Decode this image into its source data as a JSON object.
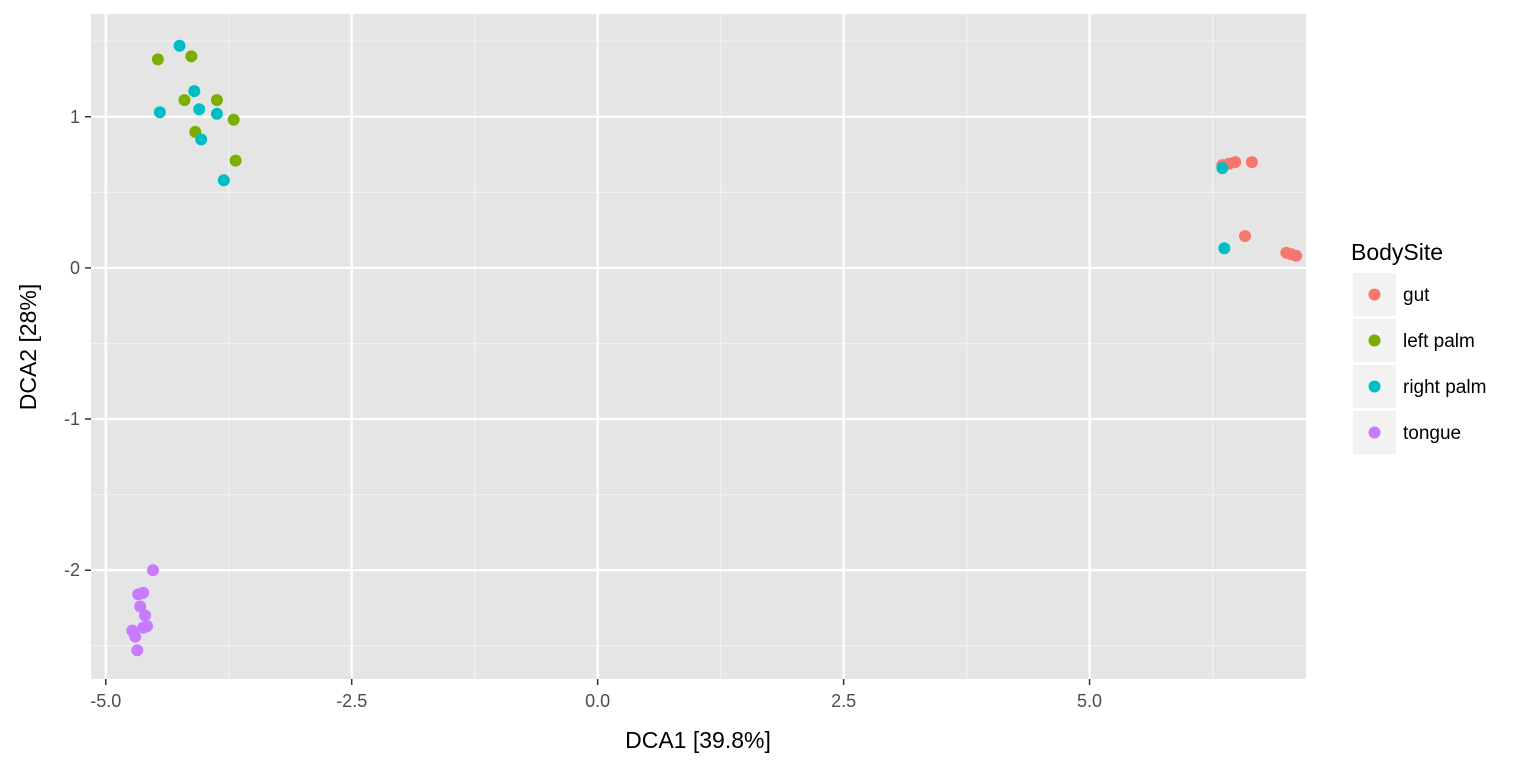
{
  "chart_data": {
    "type": "scatter",
    "xlabel": "DCA1   [39.8%]",
    "ylabel": "DCA2   [28%]",
    "xlim": [
      -5.15,
      7.2
    ],
    "ylim": [
      -2.72,
      1.68
    ],
    "x_ticks": [
      -5.0,
      -2.5,
      0.0,
      2.5,
      5.0
    ],
    "x_tick_labels": [
      "-5.0",
      "-2.5",
      "0.0",
      "2.5",
      "5.0"
    ],
    "y_ticks": [
      -2,
      -1,
      0,
      1
    ],
    "y_tick_labels": [
      "-2",
      "-1",
      "0",
      "1"
    ],
    "grid": true,
    "legend": {
      "title": "BodySite",
      "placement": "right"
    },
    "series": [
      {
        "name": "gut",
        "color": "#F8766D",
        "points": [
          [
            6.35,
            0.68
          ],
          [
            6.42,
            0.69
          ],
          [
            6.48,
            0.7
          ],
          [
            6.65,
            0.7
          ],
          [
            6.58,
            0.21
          ],
          [
            7.0,
            0.1
          ],
          [
            7.05,
            0.09
          ],
          [
            7.1,
            0.08
          ]
        ]
      },
      {
        "name": "left palm",
        "color": "#7CAE00",
        "points": [
          [
            -4.47,
            1.38
          ],
          [
            -4.13,
            1.4
          ],
          [
            -4.2,
            1.11
          ],
          [
            -3.87,
            1.11
          ],
          [
            -3.7,
            0.98
          ],
          [
            -4.09,
            0.9
          ],
          [
            -3.68,
            0.71
          ]
        ]
      },
      {
        "name": "right palm",
        "color": "#00BFC4",
        "points": [
          [
            -4.25,
            1.47
          ],
          [
            -4.1,
            1.17
          ],
          [
            -4.45,
            1.03
          ],
          [
            -4.05,
            1.05
          ],
          [
            -3.87,
            1.02
          ],
          [
            -4.03,
            0.85
          ],
          [
            -3.8,
            0.58
          ],
          [
            6.35,
            0.66
          ],
          [
            6.37,
            0.13
          ]
        ]
      },
      {
        "name": "tongue",
        "color": "#C77CFF",
        "points": [
          [
            -4.52,
            -2.0
          ],
          [
            -4.62,
            -2.15
          ],
          [
            -4.67,
            -2.16
          ],
          [
            -4.65,
            -2.24
          ],
          [
            -4.6,
            -2.3
          ],
          [
            -4.58,
            -2.37
          ],
          [
            -4.62,
            -2.38
          ],
          [
            -4.73,
            -2.4
          ],
          [
            -4.7,
            -2.44
          ],
          [
            -4.68,
            -2.53
          ]
        ]
      }
    ]
  }
}
